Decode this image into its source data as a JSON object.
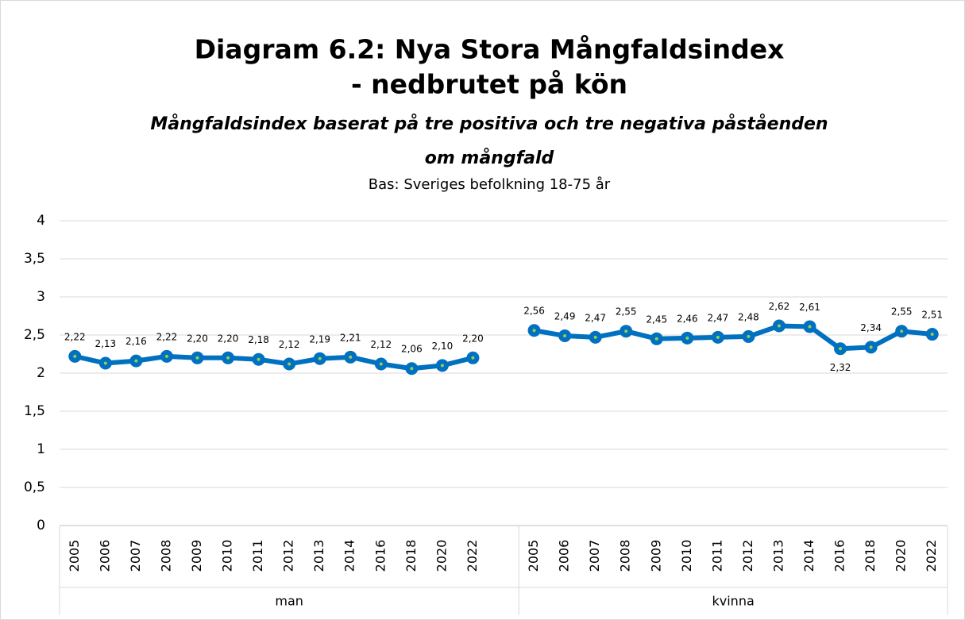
{
  "chart_data": {
    "type": "line",
    "title": [
      "Diagram 6.2: Nya Stora Mångfaldsindex",
      "- nedbrutet på kön"
    ],
    "subtitle": [
      "Mångfaldsindex baserat på tre positiva och tre negativa påståenden",
      "om mångfald"
    ],
    "note": "Bas: Sveriges befolkning 18-75 år",
    "color": "#0070c0",
    "marker_center_color": "#92d050",
    "grid": true,
    "ylim": [
      0,
      4
    ],
    "yticks": [
      0,
      {
        "value": 0.5,
        "label": "0,5"
      },
      1,
      {
        "value": 1.5,
        "label": "1,5"
      },
      2,
      {
        "value": 2.5,
        "label": "2,5"
      },
      3,
      {
        "value": 3.5,
        "label": "3,5"
      },
      4
    ],
    "groups": [
      {
        "label": "man",
        "categories": [
          "2005",
          "2006",
          "2007",
          "2008",
          "2009",
          "2010",
          "2011",
          "2012",
          "2013",
          "2014",
          "2016",
          "2018",
          "2020",
          "2022"
        ],
        "values": [
          2.22,
          2.13,
          2.16,
          2.22,
          2.2,
          2.2,
          2.18,
          2.12,
          2.19,
          2.21,
          2.12,
          2.06,
          2.1,
          2.2
        ],
        "value_labels": [
          "2,22",
          "2,13",
          "2,16",
          "2,22",
          "2,20",
          "2,20",
          "2,18",
          "2,12",
          "2,19",
          "2,21",
          "2,12",
          "2,06",
          "2,10",
          "2,20"
        ]
      },
      {
        "label": "kvinna",
        "categories": [
          "2005",
          "2006",
          "2007",
          "2008",
          "2009",
          "2010",
          "2011",
          "2012",
          "2013",
          "2014",
          "2016",
          "2018",
          "2020",
          "2022"
        ],
        "values": [
          2.56,
          2.49,
          2.47,
          2.55,
          2.45,
          2.46,
          2.47,
          2.48,
          2.62,
          2.61,
          2.32,
          2.34,
          2.55,
          2.51
        ],
        "value_labels": [
          "2,56",
          "2,49",
          "2,47",
          "2,55",
          "2,45",
          "2,46",
          "2,47",
          "2,48",
          "2,62",
          "2,61",
          "2,32",
          "2,34",
          "2,55",
          "2,51"
        ]
      }
    ]
  }
}
